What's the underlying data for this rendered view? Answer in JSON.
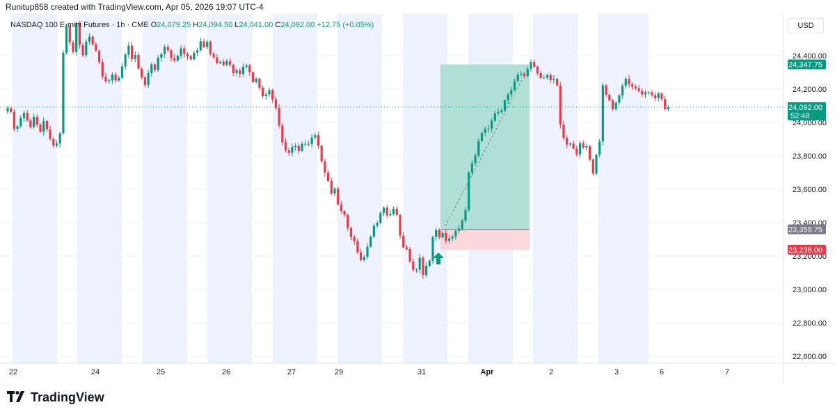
{
  "header": {
    "attribution": "Runitup858 created with TradingView.com, Apr 05, 2026 19:07 UTC-4"
  },
  "legend": {
    "symbol": "NASDAQ 100 E-mini Futures · 1h · CME",
    "open_label": "O",
    "open": "24,079.25",
    "high_label": "H",
    "high": "24,094.50",
    "low_label": "L",
    "low": "24,041.00",
    "close_label": "C",
    "close": "24,092.00",
    "change": "+12.75 (+0.05%)"
  },
  "currency": "USD",
  "price_badges": {
    "target": "24,347.75",
    "last": "24,092.00",
    "countdown": "52:48",
    "entry": "23,359.75",
    "stop": "23,238.00"
  },
  "colors": {
    "up": "#089981",
    "down": "#f23645",
    "session_band": "#eef2fc",
    "profit_zone": "#a3dccf",
    "loss_zone": "#fad4d8",
    "entry_badge": "#787b86"
  },
  "logo": {
    "text": "TradingView",
    "icon": "tradingview-logo-icon"
  },
  "chart_data": {
    "type": "candlestick",
    "timeframe": "1h",
    "y_axis_ticks": [
      "24,400.00",
      "24,200.00",
      "24,000.00",
      "23,800.00",
      "23,600.00",
      "23,400.00",
      "23,200.00",
      "23,000.00",
      "22,800.00",
      "22,600.00"
    ],
    "ylim": [
      22540,
      24700
    ],
    "x_axis_ticks": [
      "22",
      "24",
      "25",
      "26",
      "27",
      "29",
      "31",
      "Apr",
      "2",
      "3",
      "6",
      "7"
    ],
    "position": {
      "side": "long",
      "entry": 23359.75,
      "target": 24347.75,
      "stop": 23238.0
    },
    "last_price": 24092.0,
    "series": [
      {
        "name": "price",
        "close": [
          24086,
          24064,
          23962,
          23978,
          24026,
          24058,
          24012,
          23972,
          24034,
          23986,
          23944,
          24008,
          23958,
          23900,
          23862,
          23874,
          23936,
          24418,
          24574,
          24480,
          24422,
          24596,
          24464,
          24402,
          24484,
          24514,
          24468,
          24430,
          24362,
          24274,
          24246,
          24252,
          24286,
          24252,
          24268,
          24336,
          24406,
          24460,
          24380,
          24404,
          24322,
          24270,
          24224,
          24296,
          24348,
          24314,
          24388,
          24410,
          24452,
          24432,
          24386,
          24370,
          24400,
          24444,
          24410,
          24396,
          24378,
          24418,
          24432,
          24486,
          24452,
          24484,
          24412,
          24390,
          24356,
          24364,
          24344,
          24368,
          24346,
          24296,
          24312,
          24290,
          24334,
          24342,
          24300,
          24242,
          24262,
          24208,
          24158,
          24168,
          24194,
          24138,
          24088,
          23982,
          23882,
          23834,
          23818,
          23854,
          23860,
          23830,
          23872,
          23872,
          23870,
          23910,
          23924,
          23860,
          23768,
          23700,
          23650,
          23574,
          23604,
          23508,
          23470,
          23446,
          23368,
          23314,
          23290,
          23222,
          23176,
          23196,
          23256,
          23316,
          23382,
          23398,
          23458,
          23490,
          23444,
          23452,
          23484,
          23446,
          23322,
          23252,
          23242,
          23168,
          23118,
          23118,
          23190,
          23086,
          23142,
          23172,
          23314,
          23356,
          23312,
          23338,
          23292,
          23306,
          23316,
          23350,
          23364,
          23412,
          23476,
          23700,
          23756,
          23802,
          23888,
          23938,
          23962,
          23964,
          24010,
          24054,
          24062,
          24074,
          24132,
          24168,
          24194,
          24248,
          24286,
          24292,
          24278,
          24320,
          24362,
          24334,
          24296,
          24266,
          24268,
          24284,
          24254,
          24260,
          24222,
          23988,
          23908,
          23868,
          23874,
          23844,
          23808,
          23876,
          23850,
          23858,
          23778,
          23694,
          23806,
          23886,
          24222,
          24166,
          24132,
          24080,
          24118,
          24162,
          24220,
          24262,
          24228,
          24214,
          24204,
          24188,
          24168,
          24180,
          24180,
          24162,
          24146,
          24174,
          24140,
          24079,
          24092
        ]
      }
    ]
  }
}
